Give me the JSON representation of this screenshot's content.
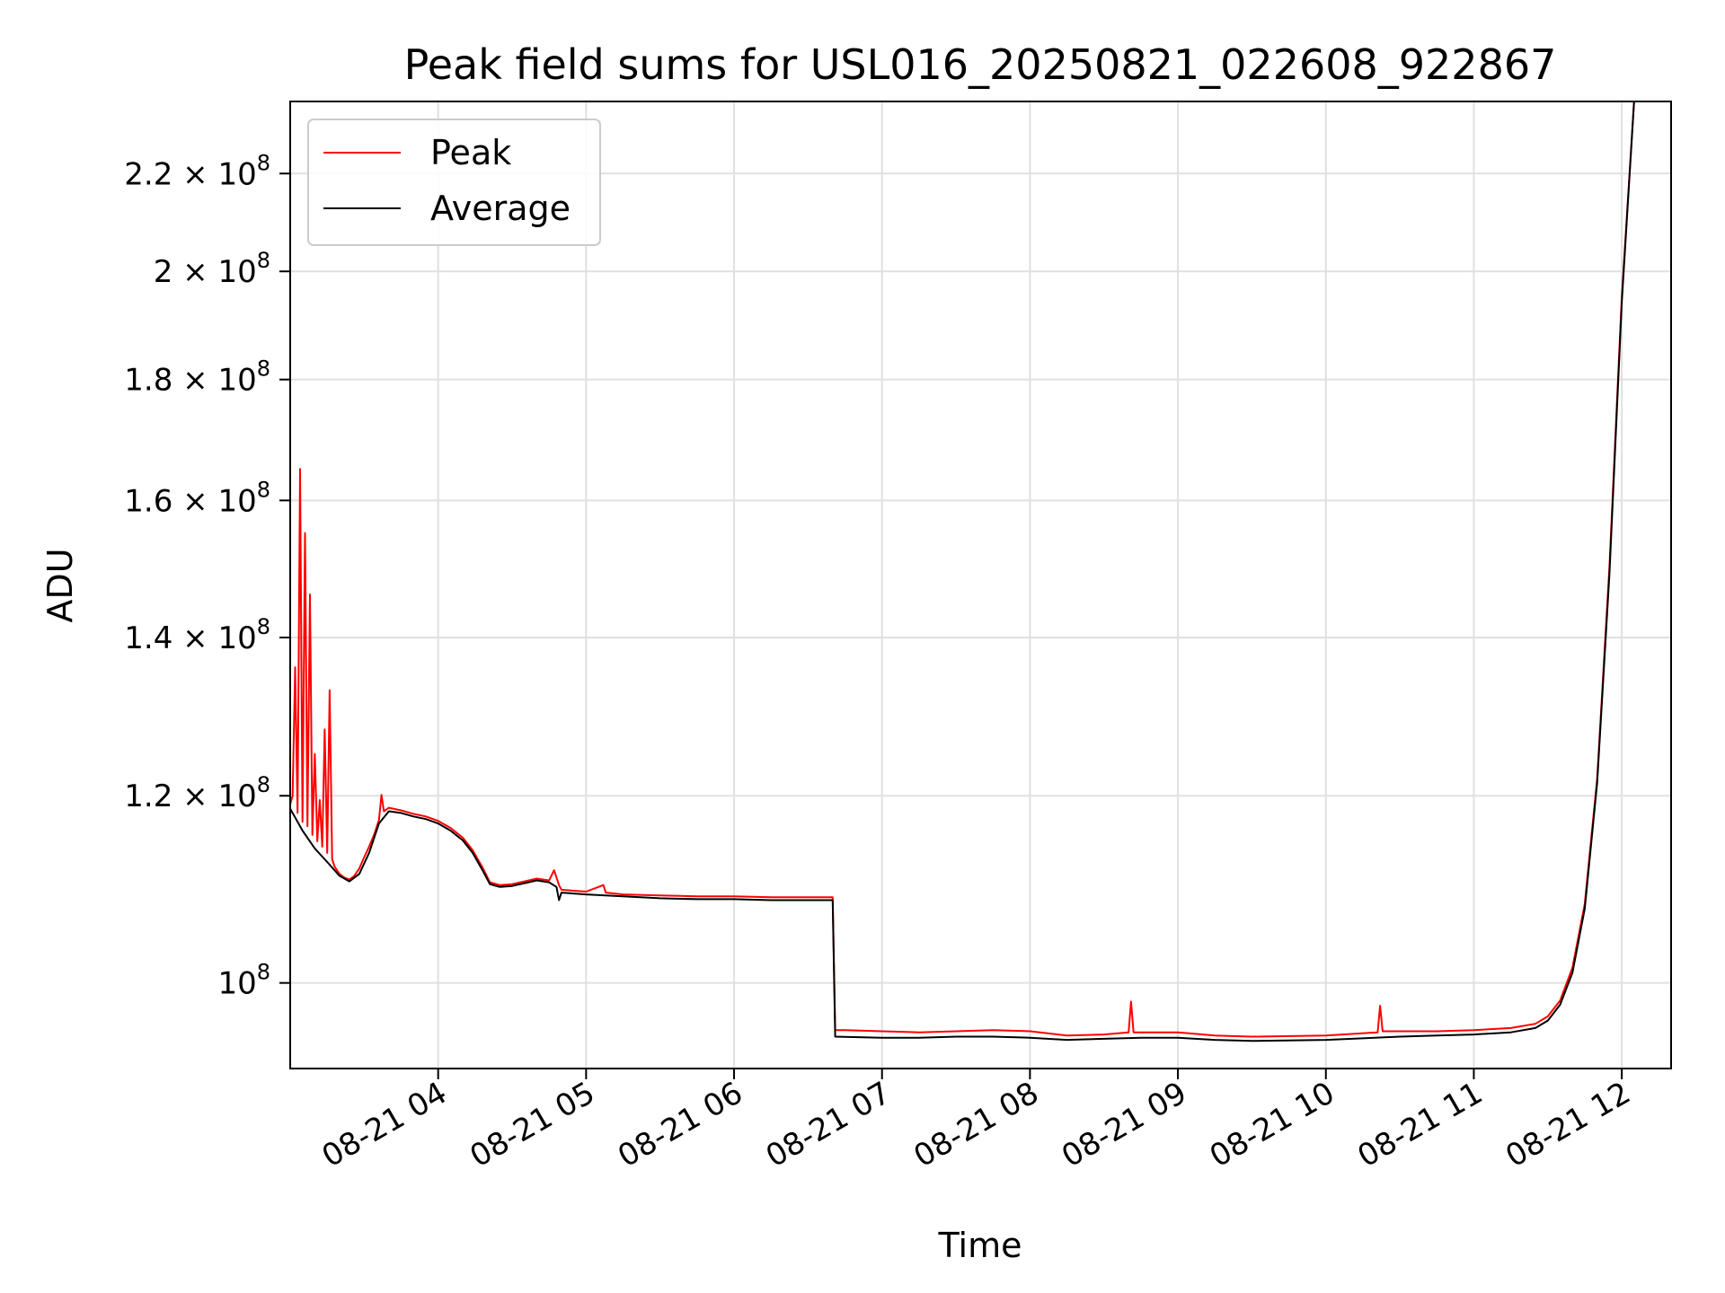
{
  "chart_data": {
    "type": "line",
    "title": "Peak field sums for USL016_20250821_022608_922867",
    "xlabel": "Time",
    "ylabel": "ADU",
    "y_scale": "log",
    "grid": true,
    "legend_placement": "upper-left",
    "xlim": [
      "2025-08-21 03:00",
      "2025-08-21 12:20"
    ],
    "ylim": [
      92000000,
      236000000
    ],
    "x_ticks": [
      "2025-08-21 04:00",
      "2025-08-21 05:00",
      "2025-08-21 06:00",
      "2025-08-21 07:00",
      "2025-08-21 08:00",
      "2025-08-21 09:00",
      "2025-08-21 10:00",
      "2025-08-21 11:00",
      "2025-08-21 12:00"
    ],
    "x_tick_labels": [
      "08-21 04",
      "08-21 05",
      "08-21 06",
      "08-21 07",
      "08-21 08",
      "08-21 09",
      "08-21 10",
      "08-21 11",
      "08-21 12"
    ],
    "y_ticks": [
      100000000,
      120000000,
      140000000,
      160000000,
      180000000,
      200000000,
      220000000
    ],
    "y_tick_labels": [
      {
        "mantissa": "",
        "exp": "8"
      },
      {
        "mantissa": "1.2",
        "exp": "8"
      },
      {
        "mantissa": "1.4",
        "exp": "8"
      },
      {
        "mantissa": "1.6",
        "exp": "8"
      },
      {
        "mantissa": "1.8",
        "exp": "8"
      },
      {
        "mantissa": "2",
        "exp": "8"
      },
      {
        "mantissa": "2.2",
        "exp": "8"
      }
    ],
    "series": [
      {
        "name": "Peak",
        "color": "#ff0000",
        "points": [
          [
            "2025-08-21 03:00",
            119000000
          ],
          [
            "2025-08-21 03:01",
            120000000
          ],
          [
            "2025-08-21 03:02",
            136000000
          ],
          [
            "2025-08-21 03:03",
            118000000
          ],
          [
            "2025-08-21 03:04",
            165000000
          ],
          [
            "2025-08-21 03:05",
            117000000
          ],
          [
            "2025-08-21 03:06",
            155000000
          ],
          [
            "2025-08-21 03:07",
            116500000
          ],
          [
            "2025-08-21 03:08",
            146000000
          ],
          [
            "2025-08-21 03:09",
            115500000
          ],
          [
            "2025-08-21 03:10",
            125000000
          ],
          [
            "2025-08-21 03:11",
            114800000
          ],
          [
            "2025-08-21 03:12",
            119500000
          ],
          [
            "2025-08-21 03:13",
            114200000
          ],
          [
            "2025-08-21 03:14",
            128000000
          ],
          [
            "2025-08-21 03:15",
            113500000
          ],
          [
            "2025-08-21 03:16",
            133000000
          ],
          [
            "2025-08-21 03:17",
            112800000
          ],
          [
            "2025-08-21 03:18",
            112000000
          ],
          [
            "2025-08-21 03:19",
            111600000
          ],
          [
            "2025-08-21 03:20",
            111200000
          ],
          [
            "2025-08-21 03:22",
            110800000
          ],
          [
            "2025-08-21 03:24",
            110600000
          ],
          [
            "2025-08-21 03:26",
            111000000
          ],
          [
            "2025-08-21 03:28",
            111800000
          ],
          [
            "2025-08-21 03:30",
            113000000
          ],
          [
            "2025-08-21 03:32",
            114200000
          ],
          [
            "2025-08-21 03:34",
            115500000
          ],
          [
            "2025-08-21 03:36",
            117200000
          ],
          [
            "2025-08-21 03:37",
            120100000
          ],
          [
            "2025-08-21 03:38",
            118200000
          ],
          [
            "2025-08-21 03:40",
            118600000
          ],
          [
            "2025-08-21 03:45",
            118300000
          ],
          [
            "2025-08-21 03:50",
            117900000
          ],
          [
            "2025-08-21 03:55",
            117600000
          ],
          [
            "2025-08-21 04:00",
            117100000
          ],
          [
            "2025-08-21 04:05",
            116300000
          ],
          [
            "2025-08-21 04:10",
            115200000
          ],
          [
            "2025-08-21 04:14",
            113800000
          ],
          [
            "2025-08-21 04:18",
            111900000
          ],
          [
            "2025-08-21 04:21",
            110300000
          ],
          [
            "2025-08-21 04:25",
            110000000
          ],
          [
            "2025-08-21 04:30",
            110100000
          ],
          [
            "2025-08-21 04:35",
            110400000
          ],
          [
            "2025-08-21 04:40",
            110700000
          ],
          [
            "2025-08-21 04:45",
            110500000
          ],
          [
            "2025-08-21 04:47",
            111600000
          ],
          [
            "2025-08-21 04:49",
            110000000
          ],
          [
            "2025-08-21 04:50",
            109500000
          ],
          [
            "2025-08-21 04:55",
            109400000
          ],
          [
            "2025-08-21 05:00",
            109300000
          ],
          [
            "2025-08-21 05:07",
            110000000
          ],
          [
            "2025-08-21 05:08",
            109200000
          ],
          [
            "2025-08-21 05:15",
            109000000
          ],
          [
            "2025-08-21 05:30",
            108900000
          ],
          [
            "2025-08-21 05:45",
            108800000
          ],
          [
            "2025-08-21 06:00",
            108800000
          ],
          [
            "2025-08-21 06:15",
            108700000
          ],
          [
            "2025-08-21 06:30",
            108700000
          ],
          [
            "2025-08-21 06:40",
            108700000
          ],
          [
            "2025-08-21 06:41",
            95500000
          ],
          [
            "2025-08-21 06:45",
            95500000
          ],
          [
            "2025-08-21 07:00",
            95400000
          ],
          [
            "2025-08-21 07:15",
            95300000
          ],
          [
            "2025-08-21 07:30",
            95400000
          ],
          [
            "2025-08-21 07:45",
            95500000
          ],
          [
            "2025-08-21 08:00",
            95400000
          ],
          [
            "2025-08-21 08:15",
            95000000
          ],
          [
            "2025-08-21 08:30",
            95100000
          ],
          [
            "2025-08-21 08:40",
            95300000
          ],
          [
            "2025-08-21 08:41",
            98200000
          ],
          [
            "2025-08-21 08:42",
            95300000
          ],
          [
            "2025-08-21 09:00",
            95300000
          ],
          [
            "2025-08-21 09:15",
            95000000
          ],
          [
            "2025-08-21 09:30",
            94900000
          ],
          [
            "2025-08-21 10:00",
            95000000
          ],
          [
            "2025-08-21 10:21",
            95300000
          ],
          [
            "2025-08-21 10:22",
            97800000
          ],
          [
            "2025-08-21 10:23",
            95400000
          ],
          [
            "2025-08-21 10:45",
            95400000
          ],
          [
            "2025-08-21 11:00",
            95500000
          ],
          [
            "2025-08-21 11:15",
            95700000
          ],
          [
            "2025-08-21 11:25",
            96100000
          ],
          [
            "2025-08-21 11:30",
            96800000
          ],
          [
            "2025-08-21 11:35",
            98300000
          ],
          [
            "2025-08-21 11:40",
            101500000
          ],
          [
            "2025-08-21 11:45",
            108000000
          ],
          [
            "2025-08-21 11:50",
            122000000
          ],
          [
            "2025-08-21 11:55",
            150000000
          ],
          [
            "2025-08-21 12:00",
            195000000
          ],
          [
            "2025-08-21 12:05",
            236000000
          ]
        ]
      },
      {
        "name": "Average",
        "color": "#000000",
        "points": [
          [
            "2025-08-21 03:00",
            118500000
          ],
          [
            "2025-08-21 03:05",
            116000000
          ],
          [
            "2025-08-21 03:10",
            114000000
          ],
          [
            "2025-08-21 03:15",
            112500000
          ],
          [
            "2025-08-21 03:20",
            111000000
          ],
          [
            "2025-08-21 03:24",
            110400000
          ],
          [
            "2025-08-21 03:28",
            111200000
          ],
          [
            "2025-08-21 03:32",
            113500000
          ],
          [
            "2025-08-21 03:36",
            116800000
          ],
          [
            "2025-08-21 03:40",
            118200000
          ],
          [
            "2025-08-21 03:45",
            118000000
          ],
          [
            "2025-08-21 03:50",
            117600000
          ],
          [
            "2025-08-21 03:55",
            117300000
          ],
          [
            "2025-08-21 04:00",
            116800000
          ],
          [
            "2025-08-21 04:05",
            116000000
          ],
          [
            "2025-08-21 04:10",
            114900000
          ],
          [
            "2025-08-21 04:14",
            113500000
          ],
          [
            "2025-08-21 04:18",
            111600000
          ],
          [
            "2025-08-21 04:21",
            110100000
          ],
          [
            "2025-08-21 04:25",
            109800000
          ],
          [
            "2025-08-21 04:30",
            109900000
          ],
          [
            "2025-08-21 04:35",
            110200000
          ],
          [
            "2025-08-21 04:40",
            110500000
          ],
          [
            "2025-08-21 04:45",
            110300000
          ],
          [
            "2025-08-21 04:48",
            109800000
          ],
          [
            "2025-08-21 04:49",
            108400000
          ],
          [
            "2025-08-21 04:50",
            109200000
          ],
          [
            "2025-08-21 05:00",
            109000000
          ],
          [
            "2025-08-21 05:15",
            108800000
          ],
          [
            "2025-08-21 05:30",
            108600000
          ],
          [
            "2025-08-21 05:45",
            108500000
          ],
          [
            "2025-08-21 06:00",
            108500000
          ],
          [
            "2025-08-21 06:15",
            108400000
          ],
          [
            "2025-08-21 06:30",
            108400000
          ],
          [
            "2025-08-21 06:40",
            108400000
          ],
          [
            "2025-08-21 06:41",
            94900000
          ],
          [
            "2025-08-21 07:00",
            94800000
          ],
          [
            "2025-08-21 07:15",
            94800000
          ],
          [
            "2025-08-21 07:30",
            94900000
          ],
          [
            "2025-08-21 07:45",
            94900000
          ],
          [
            "2025-08-21 08:00",
            94800000
          ],
          [
            "2025-08-21 08:15",
            94600000
          ],
          [
            "2025-08-21 08:30",
            94700000
          ],
          [
            "2025-08-21 08:45",
            94800000
          ],
          [
            "2025-08-21 09:00",
            94800000
          ],
          [
            "2025-08-21 09:15",
            94600000
          ],
          [
            "2025-08-21 09:30",
            94500000
          ],
          [
            "2025-08-21 10:00",
            94600000
          ],
          [
            "2025-08-21 10:30",
            94900000
          ],
          [
            "2025-08-21 10:45",
            95000000
          ],
          [
            "2025-08-21 11:00",
            95100000
          ],
          [
            "2025-08-21 11:15",
            95300000
          ],
          [
            "2025-08-21 11:25",
            95700000
          ],
          [
            "2025-08-21 11:30",
            96400000
          ],
          [
            "2025-08-21 11:35",
            97900000
          ],
          [
            "2025-08-21 11:40",
            101000000
          ],
          [
            "2025-08-21 11:45",
            107500000
          ],
          [
            "2025-08-21 11:50",
            121500000
          ],
          [
            "2025-08-21 11:55",
            149000000
          ],
          [
            "2025-08-21 12:00",
            194000000
          ],
          [
            "2025-08-21 12:05",
            236000000
          ]
        ]
      }
    ]
  }
}
